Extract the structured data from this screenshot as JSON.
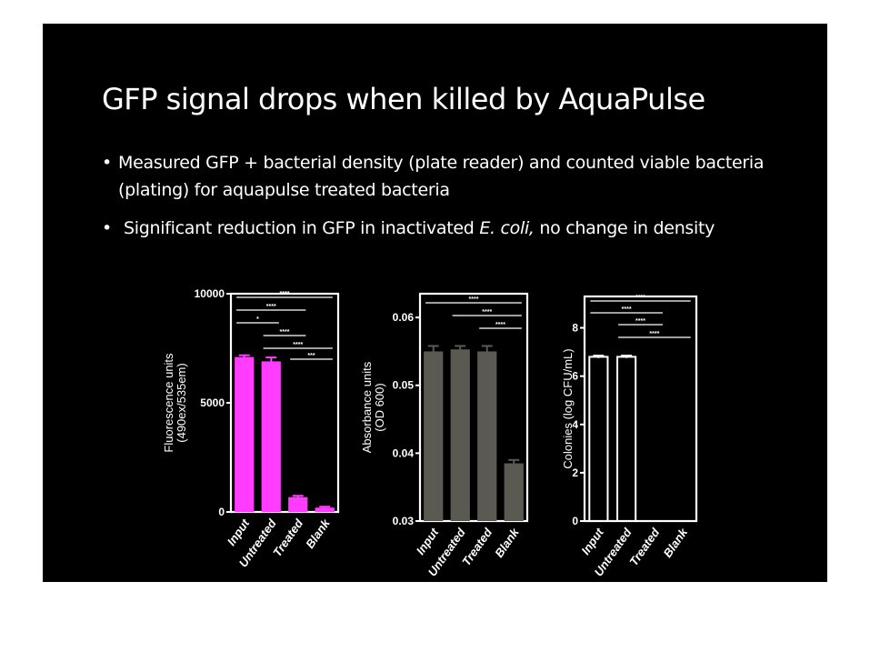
{
  "slide": {
    "title": "GFP signal drops when killed by AquaPulse",
    "bullets": [
      {
        "text": "Measured GFP + bacterial density (plate reader) and counted viable bacteria (plating) for aquapulse treated bacteria"
      },
      {
        "text_before": "Significant reduction in GFP in inactivated ",
        "italic": "E. coli,",
        "text_after": " no change in density"
      }
    ]
  },
  "chart_data": [
    {
      "type": "bar",
      "ylabel": [
        "Fluorescence units",
        "(490ex/535em)"
      ],
      "categories": [
        "Input",
        "Untreated",
        "Treated",
        "Blank"
      ],
      "values": [
        7100,
        6900,
        680,
        200
      ],
      "errors": [
        80,
        180,
        60,
        40
      ],
      "ylim": [
        0,
        10000
      ],
      "yticks": [
        "0",
        "5000",
        "10000"
      ],
      "ytick_values": [
        0,
        5000,
        10000
      ],
      "bar_color": "#ff3cff",
      "bar_fill": true,
      "significance": [
        {
          "from": 0,
          "to": 3,
          "label": "****"
        },
        {
          "from": 0,
          "to": 2,
          "label": "****"
        },
        {
          "from": 0,
          "to": 1,
          "label": "*"
        },
        {
          "from": 1,
          "to": 2,
          "label": "****"
        },
        {
          "from": 1,
          "to": 3,
          "label": "****"
        },
        {
          "from": 2,
          "to": 3,
          "label": "***"
        }
      ]
    },
    {
      "type": "bar",
      "ylabel": [
        "Absorbance units",
        "(OD 600)"
      ],
      "categories": [
        "Input",
        "Untreated",
        "Treated",
        "Blank"
      ],
      "values": [
        0.055,
        0.0553,
        0.055,
        0.0385
      ],
      "errors": [
        0.0008,
        0.0005,
        0.0008,
        0.0005
      ],
      "ylim": [
        0.03,
        0.0635
      ],
      "yticks": [
        "0.03",
        "0.04",
        "0.05",
        "0.06"
      ],
      "ytick_values": [
        0.03,
        0.04,
        0.05,
        0.06
      ],
      "bar_color": "#5a5a52",
      "bar_fill": true,
      "significance": [
        {
          "from": 0,
          "to": 3,
          "label": "****"
        },
        {
          "from": 1,
          "to": 3,
          "label": "****"
        },
        {
          "from": 2,
          "to": 3,
          "label": "****"
        }
      ]
    },
    {
      "type": "bar",
      "ylabel": [
        "Colonies (log CFU/mL)"
      ],
      "categories": [
        "Input",
        "Untreated",
        "Treated",
        "Blank"
      ],
      "values": [
        6.8,
        6.8,
        0,
        0
      ],
      "errors": [
        0.05,
        0.05,
        0,
        0
      ],
      "ylim": [
        0,
        9.3
      ],
      "yticks": [
        "0",
        "2",
        "4",
        "6",
        "8"
      ],
      "ytick_values": [
        0,
        2,
        4,
        6,
        8
      ],
      "bar_color": "#ffffff",
      "bar_fill": false,
      "significance": [
        {
          "from": 0,
          "to": 3,
          "label": "****"
        },
        {
          "from": 0,
          "to": 2,
          "label": "****"
        },
        {
          "from": 1,
          "to": 2,
          "label": "****"
        },
        {
          "from": 1,
          "to": 3,
          "label": "****"
        }
      ]
    }
  ]
}
